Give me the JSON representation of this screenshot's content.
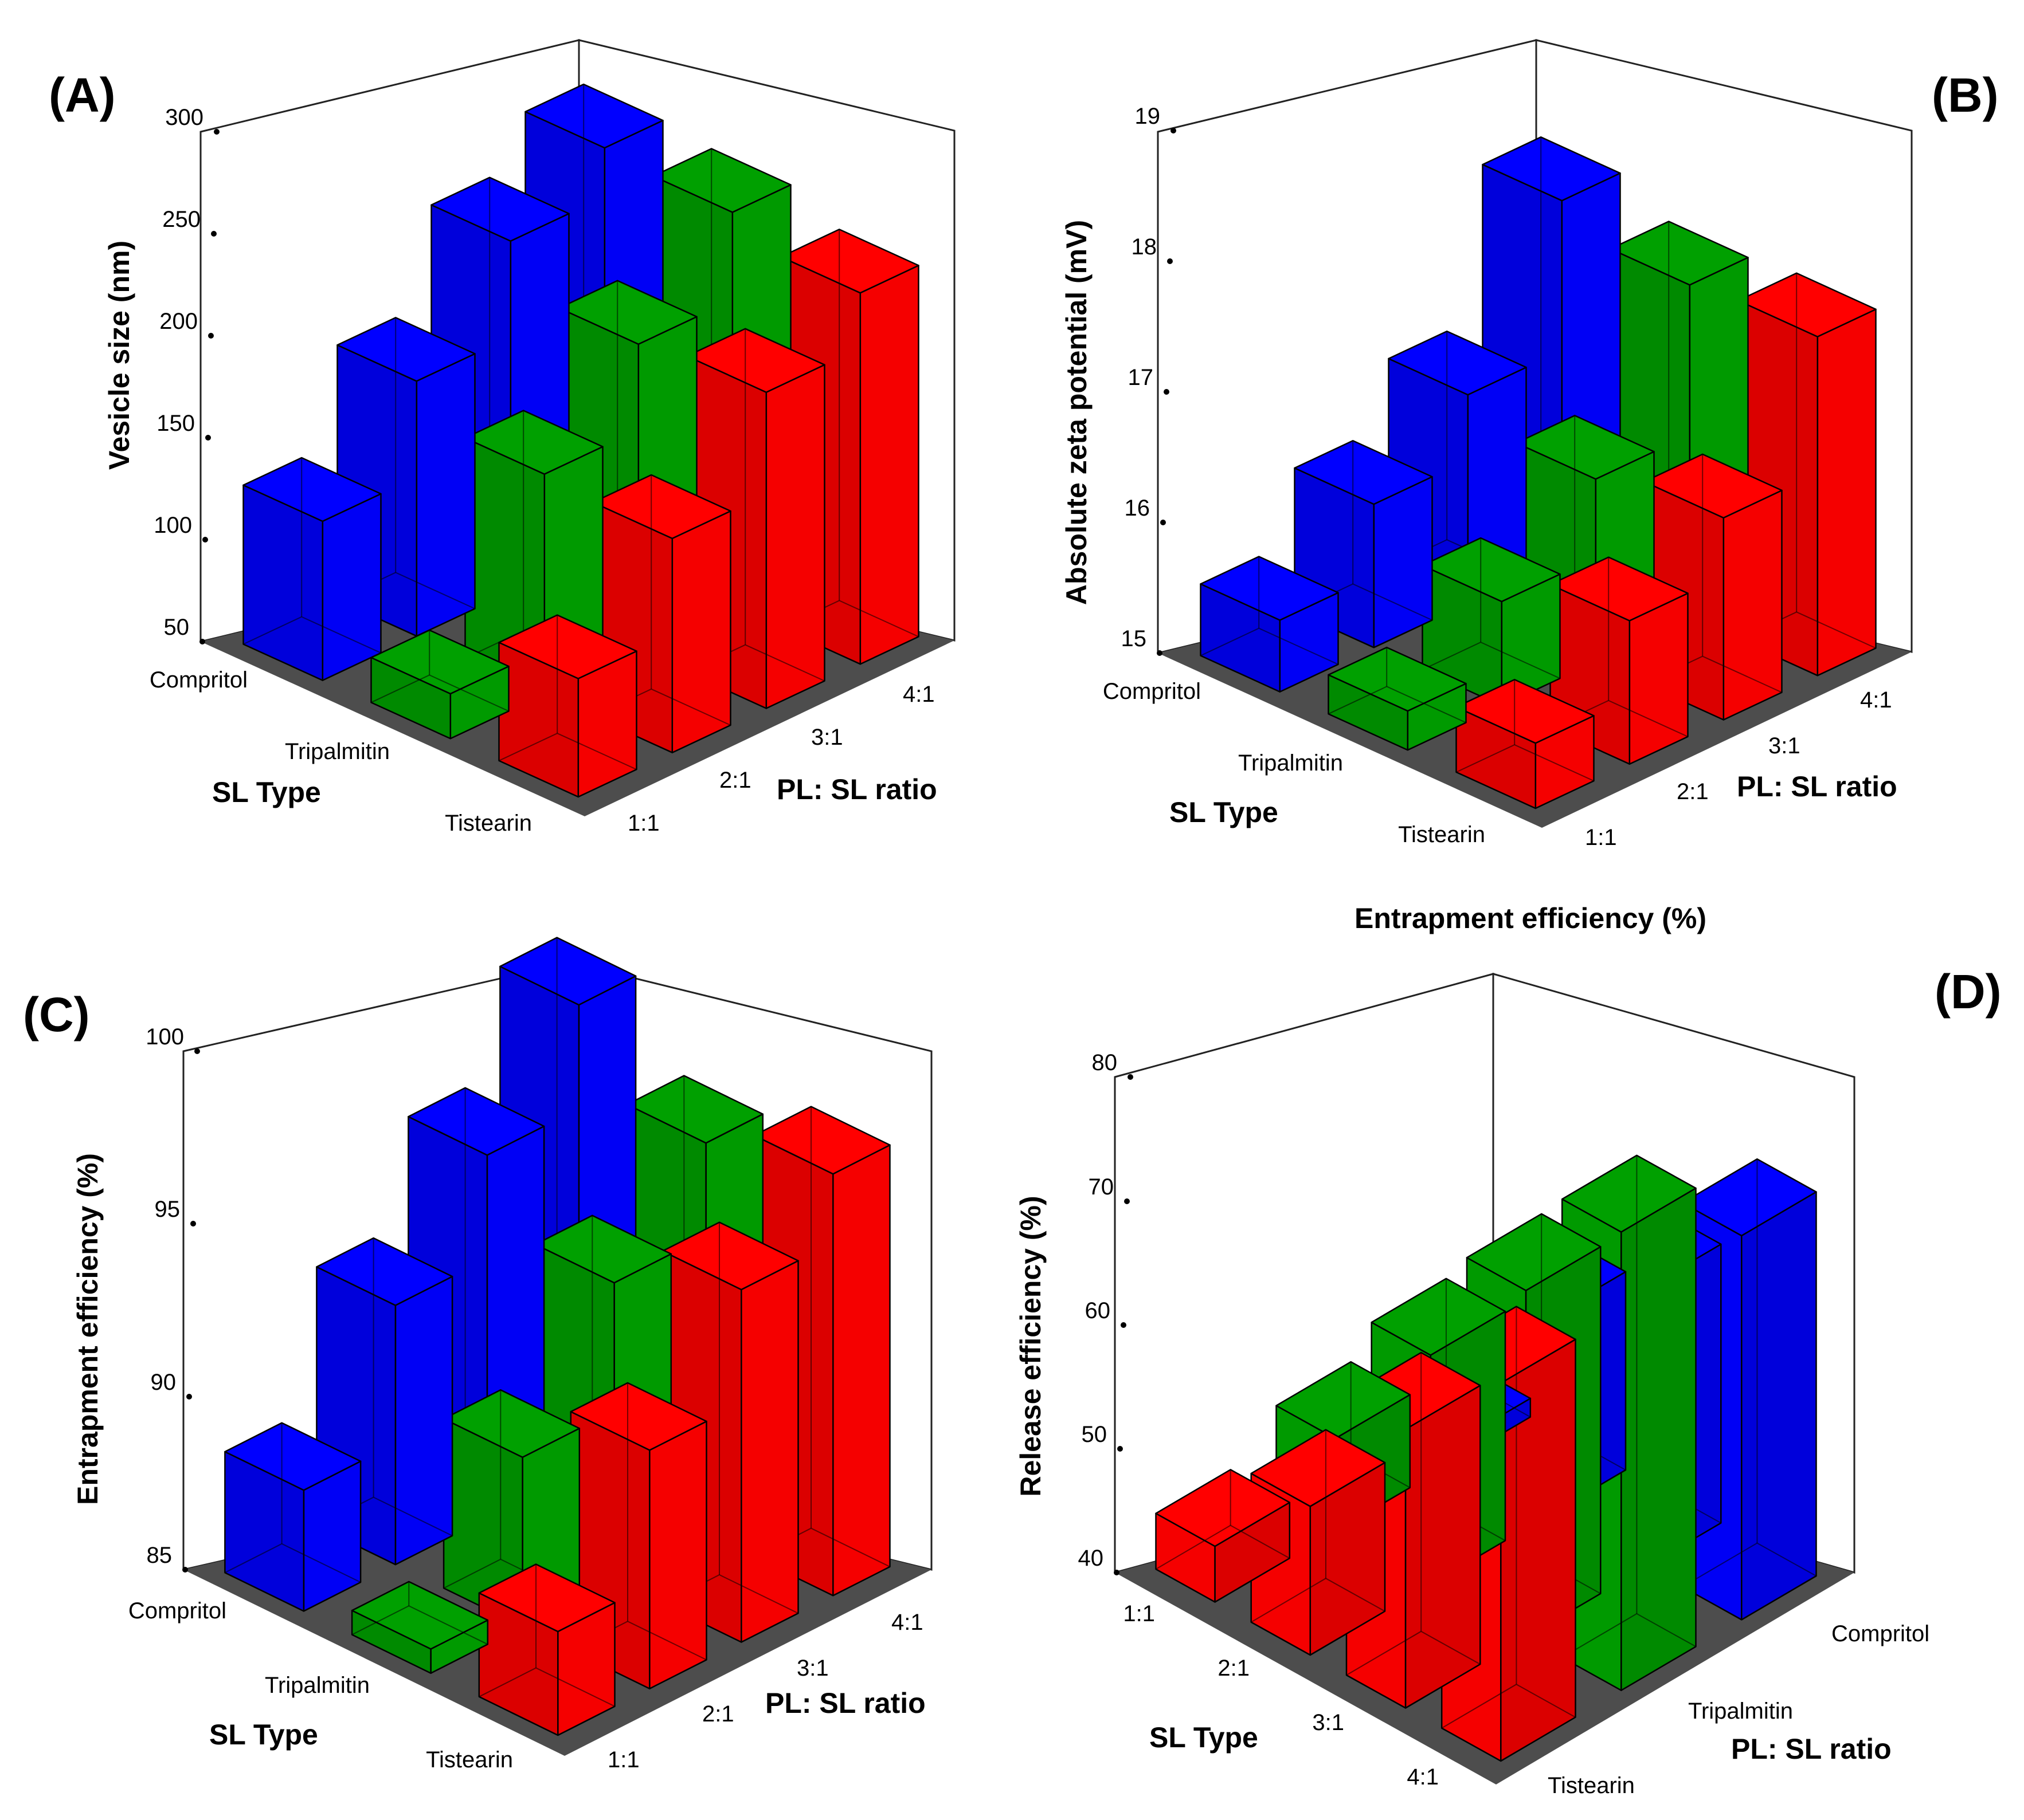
{
  "extra_label": "Entrapment efficiency (%)",
  "chart_data": [
    {
      "type": "bar3d",
      "panel": "(A)",
      "zlabel": "Vesicle size (nm)",
      "z_ticks": [
        "50",
        "100",
        "150",
        "200",
        "250",
        "300"
      ],
      "zlim": [
        50,
        300
      ],
      "xlabel": "SL Type",
      "ylabel": "PL: SL ratio",
      "sl_types": [
        "Compritol",
        "Tripalmitin",
        "Tistearin"
      ],
      "ratios": [
        "1:1",
        "2:1",
        "3:1",
        "4:1"
      ],
      "colors": [
        "#0000ff",
        "#00a000",
        "#ff0000"
      ],
      "series": [
        {
          "name": "Compritol",
          "values": [
            128,
            175,
            222,
            246
          ]
        },
        {
          "name": "Tripalmitin",
          "values": [
            72,
            158,
            200,
            243
          ]
        },
        {
          "name": "Tistearin",
          "values": [
            108,
            155,
            205,
            232
          ]
        }
      ]
    },
    {
      "type": "bar3d",
      "panel": "(B)",
      "zlabel": "Absolute zeta potential (mV)",
      "z_ticks": [
        "15",
        "16",
        "17",
        "18",
        "19"
      ],
      "zlim": [
        15,
        19
      ],
      "xlabel": "SL Type",
      "ylabel": "PL: SL ratio",
      "sl_types": [
        "Compritol",
        "Tripalmitin",
        "Tistearin"
      ],
      "ratios": [
        "1:1",
        "2:1",
        "3:1",
        "4:1"
      ],
      "colors": [
        "#0000ff",
        "#00a000",
        "#ff0000"
      ],
      "series": [
        {
          "name": "Compritol",
          "values": [
            15.55,
            16.1,
            16.6,
            17.75
          ]
        },
        {
          "name": "Tripalmitin",
          "values": [
            15.3,
            15.8,
            16.4,
            17.55
          ]
        },
        {
          "name": "Tistearin",
          "values": [
            15.5,
            16.1,
            16.55,
            17.6
          ]
        }
      ]
    },
    {
      "type": "bar3d",
      "panel": "(C)",
      "zlabel": "Entrapment efficiency (%)",
      "z_ticks": [
        "85",
        "90",
        "95",
        "100"
      ],
      "zlim": [
        85,
        100
      ],
      "xlabel": "SL Type",
      "ylabel": "PL: SL ratio",
      "sl_types": [
        "Compritol",
        "Tripalmitin",
        "Tistearin"
      ],
      "ratios": [
        "1:1",
        "2:1",
        "3:1",
        "4:1"
      ],
      "colors": [
        "#0000ff",
        "#00a000",
        "#ff0000"
      ],
      "series": [
        {
          "name": "Compritol",
          "values": [
            88.5,
            92.5,
            95.5,
            98.5
          ]
        },
        {
          "name": "Tripalmitin",
          "values": [
            85.7,
            89.9,
            93.6,
            96.3
          ]
        },
        {
          "name": "Tistearin",
          "values": [
            88.0,
            91.9,
            95.2,
            97.2
          ]
        }
      ]
    },
    {
      "type": "bar3d",
      "panel": "(D)",
      "zlabel": "Release efficiency (%)",
      "z_ticks": [
        "40",
        "50",
        "60",
        "70",
        "80"
      ],
      "zlim": [
        40,
        80
      ],
      "xlabel": "SL Type",
      "ylabel": "PL: SL ratio",
      "sl_types": [
        "Compritol",
        "Tripalmitin",
        "Tistearin"
      ],
      "ratios": [
        "1:1",
        "2:1",
        "3:1",
        "4:1"
      ],
      "colors": [
        "#0000ff",
        "#00a000",
        "#ff0000"
      ],
      "series": [
        {
          "name": "Compritol",
          "values": [
            41.5,
            56.0,
            62.5,
            71.0
          ]
        },
        {
          "name": "Tripalmitin",
          "values": [
            47.5,
            58.5,
            68.0,
            77.0
          ]
        },
        {
          "name": "Tistearin",
          "values": [
            44.5,
            52.0,
            62.5,
            70.5
          ]
        }
      ]
    }
  ]
}
